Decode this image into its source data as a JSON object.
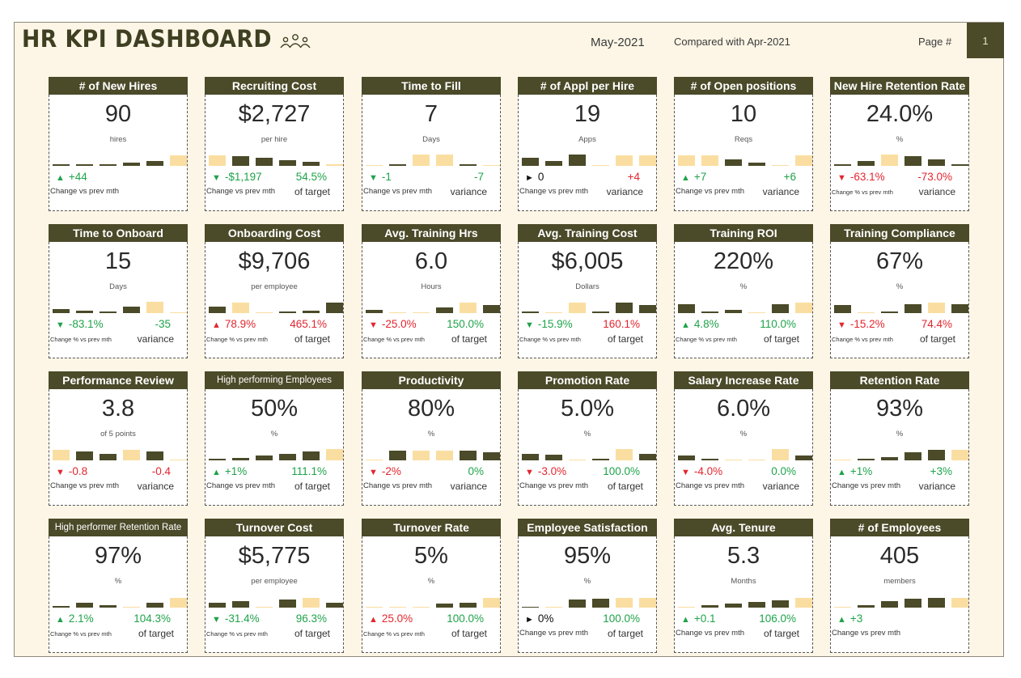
{
  "header": {
    "title": "HR KPI DASHBOARD",
    "month": "May-2021",
    "compared": "Compared with Apr-2021",
    "page_label": "Page #",
    "page_number": "1"
  },
  "colors": {
    "dark": "#4b4a29",
    "light": "#fadea1",
    "green": "#1fa34a",
    "red": "#e3262f"
  },
  "cards": [
    {
      "title": "# of New Hires",
      "value": "90",
      "unit": "hires",
      "bars": [
        {
          "h": 2,
          "c": "d"
        },
        {
          "h": 2,
          "c": "d"
        },
        {
          "h": 2,
          "c": "d"
        },
        {
          "h": 4,
          "c": "d"
        },
        {
          "h": 6,
          "c": "d"
        },
        {
          "h": 13,
          "c": "l"
        }
      ],
      "change": "+44",
      "arrow": "▲",
      "change_color": "green",
      "caption": "Change vs prev mth",
      "caption_small": false,
      "second": "",
      "second_color": "green",
      "second_caption": ""
    },
    {
      "title": "Recruiting Cost",
      "value": "$2,727",
      "unit": "per hire",
      "bars": [
        {
          "h": 13,
          "c": "l"
        },
        {
          "h": 12,
          "c": "d"
        },
        {
          "h": 10,
          "c": "d"
        },
        {
          "h": 7,
          "c": "d"
        },
        {
          "h": 5,
          "c": "d"
        },
        {
          "h": 2,
          "c": "l"
        }
      ],
      "change": "-$1,197",
      "arrow": "▼",
      "change_color": "green",
      "caption": "Change vs prev mth",
      "caption_small": false,
      "second": "54.5%",
      "second_color": "green",
      "second_caption": "of target"
    },
    {
      "title": "Time to Fill",
      "value": "7",
      "unit": "Days",
      "bars": [
        {
          "h": 1,
          "c": "l"
        },
        {
          "h": 2,
          "c": "d"
        },
        {
          "h": 14,
          "c": "l"
        },
        {
          "h": 14,
          "c": "l"
        },
        {
          "h": 2,
          "c": "d"
        },
        {
          "h": 1,
          "c": "l"
        }
      ],
      "change": "-1",
      "arrow": "▼",
      "change_color": "green",
      "caption": "Change vs prev mth",
      "caption_small": false,
      "second": "-7",
      "second_color": "green",
      "second_caption": "variance"
    },
    {
      "title": "# of Appl per Hire",
      "value": "19",
      "unit": "Apps",
      "bars": [
        {
          "h": 10,
          "c": "d"
        },
        {
          "h": 6,
          "c": "d"
        },
        {
          "h": 14,
          "c": "d"
        },
        {
          "h": 1,
          "c": "l"
        },
        {
          "h": 13,
          "c": "l"
        },
        {
          "h": 13,
          "c": "l"
        }
      ],
      "change": "0",
      "arrow": "►",
      "change_color": "black",
      "caption": "Change vs prev mth",
      "caption_small": false,
      "second": "+4",
      "second_color": "red",
      "second_caption": "variance"
    },
    {
      "title": "# of Open positions",
      "value": "10",
      "unit": "Reqs",
      "bars": [
        {
          "h": 13,
          "c": "l"
        },
        {
          "h": 13,
          "c": "l"
        },
        {
          "h": 8,
          "c": "d"
        },
        {
          "h": 4,
          "c": "d"
        },
        {
          "h": 1,
          "c": "l"
        },
        {
          "h": 13,
          "c": "l"
        }
      ],
      "change": "+7",
      "arrow": "▲",
      "change_color": "green",
      "caption": "Change vs prev mth",
      "caption_small": false,
      "second": "+6",
      "second_color": "green",
      "second_caption": "variance"
    },
    {
      "title": "New Hire Retention Rate",
      "value": "24.0%",
      "unit": "%",
      "bars": [
        {
          "h": 2,
          "c": "d"
        },
        {
          "h": 6,
          "c": "d"
        },
        {
          "h": 14,
          "c": "l"
        },
        {
          "h": 12,
          "c": "d"
        },
        {
          "h": 8,
          "c": "d"
        },
        {
          "h": 2,
          "c": "d"
        }
      ],
      "change": "-63.1%",
      "arrow": "▼",
      "change_color": "red",
      "caption": "Change % vs prev mth",
      "caption_small": true,
      "second": "-73.0%",
      "second_color": "red",
      "second_caption": "variance"
    },
    {
      "title": "Time to Onboard",
      "value": "15",
      "unit": "Days",
      "bars": [
        {
          "h": 5,
          "c": "d"
        },
        {
          "h": 3,
          "c": "d"
        },
        {
          "h": 2,
          "c": "d"
        },
        {
          "h": 8,
          "c": "d"
        },
        {
          "h": 14,
          "c": "l"
        },
        {
          "h": 1,
          "c": "l"
        }
      ],
      "change": "-83.1%",
      "arrow": "▼",
      "change_color": "green",
      "caption": "Change % vs prev mth",
      "caption_small": true,
      "second": "-35",
      "second_color": "green",
      "second_caption": "variance"
    },
    {
      "title": "Onboarding Cost",
      "value": "$9,706",
      "unit": "per employee",
      "bars": [
        {
          "h": 8,
          "c": "d"
        },
        {
          "h": 13,
          "c": "l"
        },
        {
          "h": 1,
          "c": "l"
        },
        {
          "h": 2,
          "c": "d"
        },
        {
          "h": 3,
          "c": "d"
        },
        {
          "h": 13,
          "c": "d"
        }
      ],
      "change": "78.9%",
      "arrow": "▲",
      "change_color": "red",
      "caption": "Change % vs prev mth",
      "caption_small": true,
      "second": "465.1%",
      "second_color": "red",
      "second_caption": "of target"
    },
    {
      "title": "Avg. Training Hrs",
      "value": "6.0",
      "unit": "Hours",
      "bars": [
        {
          "h": 4,
          "c": "d"
        },
        {
          "h": 1,
          "c": "l"
        },
        {
          "h": 1,
          "c": "l"
        },
        {
          "h": 7,
          "c": "d"
        },
        {
          "h": 13,
          "c": "l"
        },
        {
          "h": 10,
          "c": "d"
        }
      ],
      "change": "-25.0%",
      "arrow": "▼",
      "change_color": "red",
      "caption": "Change % vs prev mth",
      "caption_small": true,
      "second": "150.0%",
      "second_color": "green",
      "second_caption": "of target"
    },
    {
      "title": "Avg. Training Cost",
      "value": "$6,005",
      "unit": "Dollars",
      "bars": [
        {
          "h": 2,
          "c": "d"
        },
        {
          "h": 1,
          "c": "l"
        },
        {
          "h": 13,
          "c": "l"
        },
        {
          "h": 2,
          "c": "d"
        },
        {
          "h": 13,
          "c": "d"
        },
        {
          "h": 10,
          "c": "d"
        }
      ],
      "change": "-15.9%",
      "arrow": "▼",
      "change_color": "green",
      "caption": "Change % vs prev mth",
      "caption_small": true,
      "second": "160.1%",
      "second_color": "red",
      "second_caption": "of target"
    },
    {
      "title": "Training ROI",
      "value": "220%",
      "unit": "%",
      "bars": [
        {
          "h": 11,
          "c": "d"
        },
        {
          "h": 2,
          "c": "d"
        },
        {
          "h": 4,
          "c": "d"
        },
        {
          "h": 1,
          "c": "l"
        },
        {
          "h": 11,
          "c": "d"
        },
        {
          "h": 13,
          "c": "l"
        }
      ],
      "change": "4.8%",
      "arrow": "▲",
      "change_color": "green",
      "caption": "Change % vs prev mth",
      "caption_small": true,
      "second": "110.0%",
      "second_color": "green",
      "second_caption": "of target"
    },
    {
      "title": "Training Compliance",
      "value": "67%",
      "unit": "%",
      "bars": [
        {
          "h": 10,
          "c": "d"
        },
        {
          "h": 1,
          "c": "l"
        },
        {
          "h": 2,
          "c": "d"
        },
        {
          "h": 11,
          "c": "d"
        },
        {
          "h": 13,
          "c": "l"
        },
        {
          "h": 11,
          "c": "d"
        }
      ],
      "change": "-15.2%",
      "arrow": "▼",
      "change_color": "red",
      "caption": "Change % vs prev mth",
      "caption_small": true,
      "second": "74.4%",
      "second_color": "red",
      "second_caption": "of target"
    },
    {
      "title": "Performance Review",
      "value": "3.8",
      "unit": "of 5 points",
      "bars": [
        {
          "h": 13,
          "c": "l"
        },
        {
          "h": 11,
          "c": "d"
        },
        {
          "h": 8,
          "c": "d"
        },
        {
          "h": 13,
          "c": "l"
        },
        {
          "h": 11,
          "c": "d"
        },
        {
          "h": 1,
          "c": "l"
        }
      ],
      "change": "-0.8",
      "arrow": "▼",
      "change_color": "red",
      "caption": "Change vs prev mth",
      "caption_small": false,
      "second": "-0.4",
      "second_color": "red",
      "second_caption": "variance"
    },
    {
      "title": "High performing Employees",
      "small_title": true,
      "value": "50%",
      "unit": "%",
      "bars": [
        {
          "h": 2,
          "c": "d"
        },
        {
          "h": 3,
          "c": "d"
        },
        {
          "h": 6,
          "c": "d"
        },
        {
          "h": 8,
          "c": "d"
        },
        {
          "h": 11,
          "c": "d"
        },
        {
          "h": 14,
          "c": "l"
        }
      ],
      "change": "+1%",
      "arrow": "▲",
      "change_color": "green",
      "caption": "Change vs prev mth",
      "caption_small": false,
      "second": "111.1%",
      "second_color": "green",
      "second_caption": "of target"
    },
    {
      "title": "Productivity",
      "value": "80%",
      "unit": "%",
      "bars": [
        {
          "h": 1,
          "c": "l"
        },
        {
          "h": 12,
          "c": "d"
        },
        {
          "h": 12,
          "c": "l"
        },
        {
          "h": 12,
          "c": "l"
        },
        {
          "h": 12,
          "c": "d"
        },
        {
          "h": 10,
          "c": "d"
        }
      ],
      "change": "-2%",
      "arrow": "▼",
      "change_color": "red",
      "caption": "Change vs prev mth",
      "caption_small": false,
      "second": "0%",
      "second_color": "green",
      "second_caption": "variance"
    },
    {
      "title": "Promotion Rate",
      "value": "5.0%",
      "unit": "%",
      "bars": [
        {
          "h": 8,
          "c": "d"
        },
        {
          "h": 7,
          "c": "d"
        },
        {
          "h": 1,
          "c": "l"
        },
        {
          "h": 2,
          "c": "d"
        },
        {
          "h": 14,
          "c": "l"
        },
        {
          "h": 8,
          "c": "d"
        }
      ],
      "change": "-3.0%",
      "arrow": "▼",
      "change_color": "red",
      "caption": "Change vs prev mth",
      "caption_small": false,
      "second": "100.0%",
      "second_color": "green",
      "second_caption": "of target"
    },
    {
      "title": "Salary Increase Rate",
      "value": "6.0%",
      "unit": "%",
      "bars": [
        {
          "h": 6,
          "c": "d"
        },
        {
          "h": 2,
          "c": "d"
        },
        {
          "h": 1,
          "c": "l"
        },
        {
          "h": 1,
          "c": "l"
        },
        {
          "h": 14,
          "c": "l"
        },
        {
          "h": 6,
          "c": "d"
        }
      ],
      "change": "-4.0%",
      "arrow": "▼",
      "change_color": "red",
      "caption": "Change vs prev mth",
      "caption_small": false,
      "second": "0.0%",
      "second_color": "green",
      "second_caption": "variance"
    },
    {
      "title": "Retention Rate",
      "value": "93%",
      "unit": "%",
      "bars": [
        {
          "h": 1,
          "c": "l"
        },
        {
          "h": 2,
          "c": "d"
        },
        {
          "h": 4,
          "c": "d"
        },
        {
          "h": 10,
          "c": "d"
        },
        {
          "h": 13,
          "c": "d"
        },
        {
          "h": 13,
          "c": "l"
        }
      ],
      "change": "+1%",
      "arrow": "▲",
      "change_color": "green",
      "caption": "Change vs prev mth",
      "caption_small": false,
      "second": "+3%",
      "second_color": "green",
      "second_caption": "variance"
    },
    {
      "title": "High performer Retention Rate",
      "small_title": true,
      "value": "97%",
      "unit": "%",
      "bars": [
        {
          "h": 2,
          "c": "d"
        },
        {
          "h": 6,
          "c": "d"
        },
        {
          "h": 3,
          "c": "d"
        },
        {
          "h": 1,
          "c": "l"
        },
        {
          "h": 6,
          "c": "d"
        },
        {
          "h": 12,
          "c": "l"
        }
      ],
      "change": "2.1%",
      "arrow": "▲",
      "change_color": "green",
      "caption": "Change % vs prev mth",
      "caption_small": true,
      "second": "104.3%",
      "second_color": "green",
      "second_caption": "of target"
    },
    {
      "title": "Turnover Cost",
      "value": "$5,775",
      "unit": "per employee",
      "bars": [
        {
          "h": 6,
          "c": "d"
        },
        {
          "h": 8,
          "c": "d"
        },
        {
          "h": 1,
          "c": "l"
        },
        {
          "h": 10,
          "c": "d"
        },
        {
          "h": 12,
          "c": "l"
        },
        {
          "h": 6,
          "c": "d"
        }
      ],
      "change": "-31.4%",
      "arrow": "▼",
      "change_color": "green",
      "caption": "Change % vs prev mth",
      "caption_small": true,
      "second": "96.3%",
      "second_color": "green",
      "second_caption": "of target"
    },
    {
      "title": "Turnover Rate",
      "value": "5%",
      "unit": "%",
      "bars": [
        {
          "h": 1,
          "c": "l"
        },
        {
          "h": 1,
          "c": "l"
        },
        {
          "h": 1,
          "c": "l"
        },
        {
          "h": 5,
          "c": "d"
        },
        {
          "h": 6,
          "c": "d"
        },
        {
          "h": 12,
          "c": "l"
        }
      ],
      "change": "25.0%",
      "arrow": "▲",
      "change_color": "red",
      "caption": "Change % vs prev mth",
      "caption_small": true,
      "second": "100.0%",
      "second_color": "green",
      "second_caption": "of target"
    },
    {
      "title": "Employee Satisfaction",
      "value": "95%",
      "unit": "%",
      "bars": [
        {
          "h": 1,
          "c": "d"
        },
        {
          "h": 1,
          "c": "l"
        },
        {
          "h": 10,
          "c": "d"
        },
        {
          "h": 11,
          "c": "d"
        },
        {
          "h": 12,
          "c": "l"
        },
        {
          "h": 12,
          "c": "l"
        }
      ],
      "change": "0%",
      "arrow": "►",
      "change_color": "black",
      "caption": "Change vs prev mth",
      "caption_small": false,
      "second": "100.0%",
      "second_color": "green",
      "second_caption": "of target"
    },
    {
      "title": "Avg. Tenure",
      "value": "5.3",
      "unit": "Months",
      "bars": [
        {
          "h": 1,
          "c": "l"
        },
        {
          "h": 3,
          "c": "d"
        },
        {
          "h": 5,
          "c": "d"
        },
        {
          "h": 7,
          "c": "d"
        },
        {
          "h": 9,
          "c": "d"
        },
        {
          "h": 12,
          "c": "l"
        }
      ],
      "change": "+0.1",
      "arrow": "▲",
      "change_color": "green",
      "caption": "Change vs prev mth",
      "caption_small": false,
      "second": "106.0%",
      "second_color": "green",
      "second_caption": "of target"
    },
    {
      "title": "# of Employees",
      "value": "405",
      "unit": "members",
      "bars": [
        {
          "h": 1,
          "c": "l"
        },
        {
          "h": 3,
          "c": "d"
        },
        {
          "h": 8,
          "c": "d"
        },
        {
          "h": 11,
          "c": "d"
        },
        {
          "h": 12,
          "c": "d"
        },
        {
          "h": 12,
          "c": "l"
        }
      ],
      "change": "+3",
      "arrow": "▲",
      "change_color": "green",
      "caption": "Change vs prev mth",
      "caption_small": false,
      "second": "",
      "second_color": "green",
      "second_caption": ""
    }
  ]
}
